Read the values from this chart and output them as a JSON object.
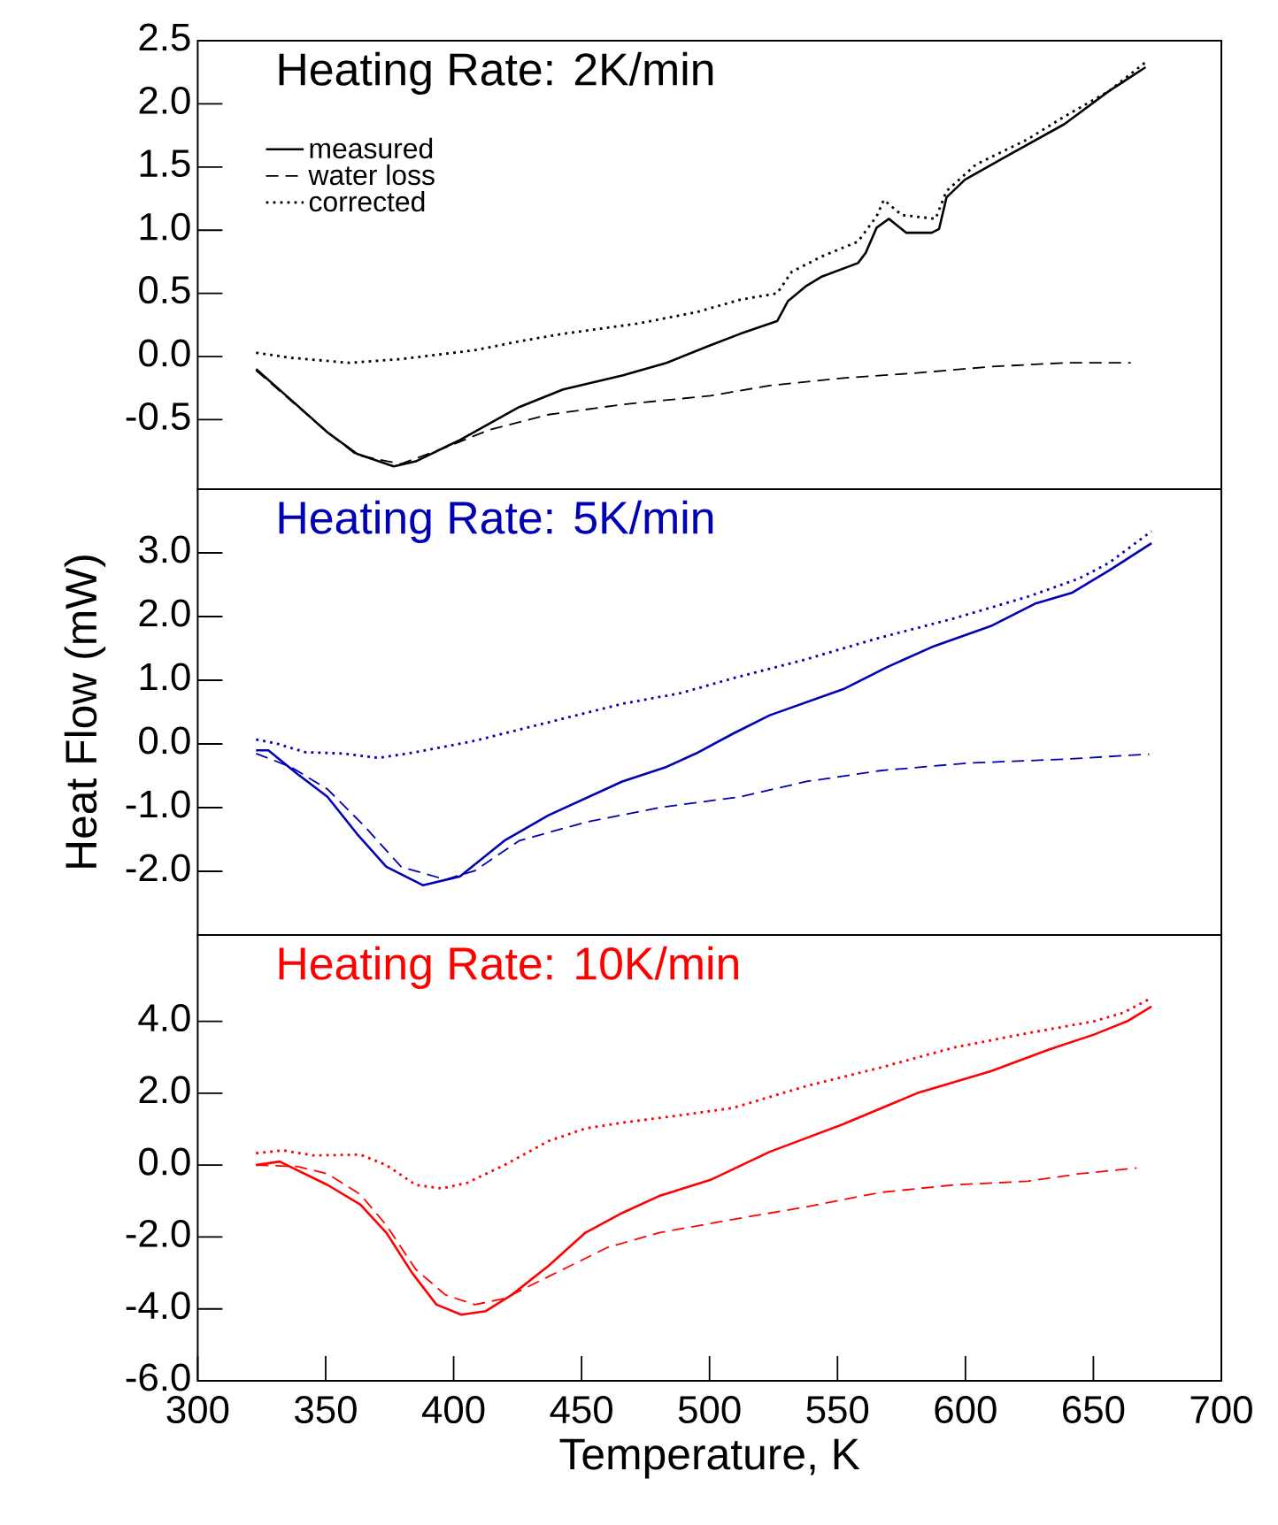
{
  "chart_data": [
    {
      "type": "line",
      "title": "Heating Rate: 2K/min",
      "xlim": [
        300,
        700
      ],
      "ylim": [
        -1.05,
        2.5
      ],
      "yticks": [
        2.5,
        {
          "value": 2,
          "label": "2.0"
        },
        1.5,
        {
          "value": 1,
          "label": "1.0"
        },
        0.5,
        {
          "value": 0,
          "label": "0.0"
        },
        -0.5
      ],
      "tick_labels": "y",
      "legend": "top left",
      "series": [
        {
          "name": "measured",
          "color": "#000000",
          "line_style": "solid",
          "x": [
            322.8,
            336.3,
            350.7,
            362.2,
            376.6,
            385.2,
            402.5,
            425.6,
            442.8,
            465.9,
            483.2,
            500.4,
            512,
            526.4,
            530.7,
            537.9,
            543.6,
            558,
            561,
            565.3,
            570.1,
            576.8,
            586.8,
            589.7,
            592.6,
            599.8,
            615.6,
            638.7,
            656,
            670.4
          ],
          "values": [
            -0.1,
            -0.34,
            -0.6,
            -0.77,
            -0.87,
            -0.83,
            -0.66,
            -0.4,
            -0.26,
            -0.15,
            -0.05,
            0.09,
            0.18,
            0.28,
            0.44,
            0.56,
            0.63,
            0.74,
            0.82,
            1.02,
            1.09,
            0.98,
            0.98,
            1.01,
            1.26,
            1.4,
            1.58,
            1.84,
            2.1,
            2.29
          ]
        },
        {
          "name": "water loss",
          "color": "#000000",
          "line_style": "dashed",
          "x": [
            322.8,
            350.7,
            362.2,
            379.5,
            396.8,
            414,
            437,
            465.9,
            500.4,
            523.5,
            552.3,
            581.1,
            609.9,
            638.7,
            664.6
          ],
          "values": [
            -0.11,
            -0.6,
            -0.78,
            -0.85,
            -0.72,
            -0.58,
            -0.46,
            -0.38,
            -0.31,
            -0.23,
            -0.17,
            -0.13,
            -0.08,
            -0.05,
            -0.05
          ]
        },
        {
          "name": "corrected",
          "color": "#000000",
          "line_style": "dotted",
          "x": [
            322.8,
            336.3,
            359.3,
            379.5,
            408.3,
            425.6,
            442.8,
            471.6,
            494.7,
            512,
            526.4,
            532.1,
            543.6,
            558,
            565.3,
            568.1,
            575.1,
            588.3,
            592.6,
            604.1,
            624.3,
            638.7,
            656,
            670.4
          ],
          "values": [
            0.03,
            -0.01,
            -0.05,
            -0.02,
            0.05,
            0.12,
            0.18,
            0.26,
            0.35,
            0.45,
            0.5,
            0.67,
            0.79,
            0.91,
            1.11,
            1.24,
            1.12,
            1.09,
            1.31,
            1.52,
            1.72,
            1.9,
            2.1,
            2.33
          ]
        }
      ]
    },
    {
      "type": "line",
      "title": "Heating Rate: 5K/min",
      "ylabel": "Heat Flow (mW)",
      "xlim": [
        300,
        700
      ],
      "ylim": [
        -3,
        4
      ],
      "yticks": [
        {
          "value": 3,
          "label": "3.0"
        },
        {
          "value": 2,
          "label": "2.0"
        },
        {
          "value": 1,
          "label": "1.0"
        },
        {
          "value": 0,
          "label": "0.0"
        },
        {
          "value": -1,
          "label": "-1.0"
        },
        {
          "value": -2,
          "label": "-2.0"
        }
      ],
      "tick_labels": "y",
      "series": [
        {
          "color": "#0000b4",
          "line_style": "solid",
          "x": [
            322.8,
            327.6,
            339.2,
            350.7,
            362.2,
            373.7,
            388.1,
            402.5,
            419.8,
            437.1,
            465.9,
            483.2,
            494.7,
            509.1,
            523.5,
            552.3,
            569.6,
            586.8,
            609.9,
            627.1,
            641.5,
            656,
            672.7
          ],
          "values": [
            -0.1,
            -0.1,
            -0.48,
            -0.83,
            -1.41,
            -1.93,
            -2.22,
            -2.08,
            -1.52,
            -1.12,
            -0.59,
            -0.36,
            -0.15,
            0.16,
            0.45,
            0.86,
            1.21,
            1.52,
            1.85,
            2.2,
            2.37,
            2.72,
            3.15
          ]
        },
        {
          "color": "#0000b4",
          "line_style": "dashed",
          "x": [
            322.8,
            336.3,
            350.7,
            365.1,
            379.5,
            396.8,
            408.3,
            425.6,
            451.5,
            480.3,
            512,
            537.9,
            566.7,
            601.2,
            638.7,
            671.8
          ],
          "values": [
            -0.15,
            -0.36,
            -0.71,
            -1.29,
            -1.93,
            -2.13,
            -1.99,
            -1.52,
            -1.23,
            -1.0,
            -0.83,
            -0.59,
            -0.42,
            -0.3,
            -0.24,
            -0.16
          ]
        },
        {
          "color": "#0000b4",
          "line_style": "dotted",
          "x": [
            322.8,
            330.5,
            342,
            356.4,
            370.8,
            385.2,
            408.3,
            437.1,
            465.9,
            488.9,
            509.1,
            537.9,
            566.7,
            595.5,
            624.3,
            644.5,
            656,
            672.7
          ],
          "values": [
            0.07,
            0.01,
            -0.13,
            -0.15,
            -0.22,
            -0.13,
            0.05,
            0.34,
            0.63,
            0.8,
            1.03,
            1.33,
            1.67,
            1.97,
            2.31,
            2.6,
            2.84,
            3.34
          ]
        }
      ]
    },
    {
      "type": "line",
      "title": "Heating Rate: 10K/min",
      "xlabel": "Temperature, K",
      "xlim": [
        300,
        700
      ],
      "ylim": [
        -6,
        6.4
      ],
      "xticks": [
        300,
        350,
        400,
        450,
        500,
        550,
        600,
        650,
        700
      ],
      "yticks": [
        {
          "value": 4,
          "label": "4.0"
        },
        {
          "value": 2,
          "label": "2.0"
        },
        {
          "value": 0,
          "label": "0.0"
        },
        {
          "value": -2,
          "label": "-2.0"
        },
        {
          "value": -4,
          "label": "-4.0"
        },
        {
          "value": -6,
          "label": "-6.0"
        }
      ],
      "series": [
        {
          "color": "#ff0000",
          "line_style": "solid",
          "x": [
            322.8,
            332,
            350.7,
            363.6,
            373.7,
            383.8,
            393.3,
            403,
            412.6,
            422.7,
            437.1,
            451.5,
            465.9,
            480.3,
            500.4,
            523.5,
            552.3,
            581.1,
            609.9,
            632.9,
            650.2,
            663.2,
            672.7
          ],
          "values": [
            0.0,
            0.1,
            -0.55,
            -1.1,
            -1.88,
            -3.0,
            -3.88,
            -4.16,
            -4.06,
            -3.61,
            -2.8,
            -1.88,
            -1.33,
            -0.86,
            -0.41,
            0.37,
            1.14,
            2.0,
            2.61,
            3.22,
            3.63,
            4.0,
            4.41
          ]
        },
        {
          "color": "#ff0000",
          "line_style": "dashed",
          "x": [
            322.8,
            339.2,
            350.7,
            363.6,
            373.7,
            385.2,
            396.8,
            408.3,
            419.8,
            437.1,
            460.1,
            480.3,
            509.1,
            537.9,
            566.7,
            595.5,
            624.3,
            644.5,
            666.9
          ],
          "values": [
            0.0,
            -0.04,
            -0.24,
            -0.82,
            -1.67,
            -2.9,
            -3.61,
            -3.88,
            -3.71,
            -3.1,
            -2.29,
            -1.88,
            -1.51,
            -1.16,
            -0.76,
            -0.55,
            -0.45,
            -0.24,
            -0.08
          ]
        },
        {
          "color": "#ff0000",
          "line_style": "dotted",
          "x": [
            322.8,
            333.4,
            344.9,
            363.6,
            373.7,
            385.2,
            395.3,
            405.4,
            419.8,
            437.1,
            451.5,
            465.9,
            488.9,
            509.1,
            537.9,
            566.7,
            595.5,
            624.3,
            650.2,
            661.7,
            672.7
          ],
          "values": [
            0.33,
            0.41,
            0.27,
            0.29,
            0.0,
            -0.55,
            -0.65,
            -0.49,
            0.0,
            0.67,
            1.02,
            1.18,
            1.39,
            1.59,
            2.2,
            2.71,
            3.27,
            3.67,
            4.0,
            4.24,
            4.65
          ]
        }
      ]
    }
  ]
}
